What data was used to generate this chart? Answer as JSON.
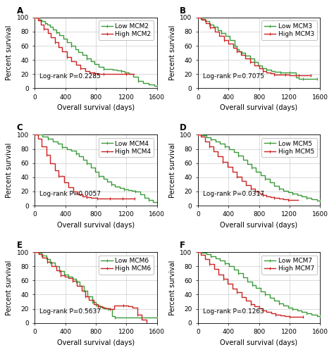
{
  "panels": [
    {
      "label": "A",
      "gene": "MCM2",
      "pvalue": "P=0.2285",
      "low_x": [
        0,
        30,
        60,
        90,
        130,
        160,
        200,
        240,
        280,
        320,
        370,
        420,
        480,
        530,
        570,
        620,
        680,
        730,
        780,
        840,
        900,
        960,
        1020,
        1080,
        1130,
        1180,
        1230,
        1290,
        1350,
        1420,
        1490,
        1570,
        1600
      ],
      "low_y": [
        100,
        100,
        97,
        95,
        92,
        90,
        87,
        83,
        79,
        75,
        70,
        65,
        60,
        55,
        51,
        47,
        42,
        38,
        34,
        30,
        27,
        27,
        26,
        25,
        24,
        22,
        20,
        16,
        10,
        7,
        5,
        3,
        3
      ],
      "high_x": [
        0,
        40,
        80,
        120,
        170,
        210,
        260,
        310,
        360,
        420,
        480,
        540,
        600,
        660,
        720,
        780,
        820,
        860,
        900,
        1000,
        1100,
        1200,
        1280,
        1300
      ],
      "high_y": [
        100,
        96,
        90,
        84,
        78,
        72,
        65,
        58,
        52,
        44,
        38,
        33,
        28,
        24,
        22,
        21,
        20,
        20,
        20,
        20,
        20,
        20,
        20,
        20
      ]
    },
    {
      "label": "B",
      "gene": "MCM3",
      "pvalue": "P=0.7075",
      "low_x": [
        0,
        40,
        90,
        150,
        200,
        260,
        310,
        360,
        420,
        480,
        510,
        540,
        570,
        620,
        680,
        740,
        790,
        840,
        900,
        960,
        1010,
        1080,
        1100,
        1140,
        1200,
        1280,
        1320,
        1380,
        1440,
        1510,
        1560
      ],
      "low_y": [
        100,
        98,
        95,
        90,
        87,
        82,
        78,
        74,
        68,
        60,
        55,
        52,
        50,
        46,
        42,
        37,
        32,
        28,
        26,
        24,
        23,
        22,
        22,
        22,
        22,
        15,
        13,
        13,
        13,
        13,
        13
      ],
      "high_x": [
        0,
        50,
        100,
        160,
        220,
        280,
        340,
        400,
        460,
        510,
        560,
        620,
        680,
        740,
        800,
        850,
        900,
        950,
        1000,
        1050,
        1100,
        1150,
        1200,
        1260,
        1320,
        1380,
        1440,
        1480
      ],
      "high_y": [
        100,
        97,
        92,
        86,
        80,
        74,
        68,
        63,
        57,
        52,
        47,
        42,
        37,
        32,
        28,
        24,
        22,
        21,
        19,
        19,
        19,
        19,
        18,
        18,
        18,
        18,
        18,
        18
      ]
    },
    {
      "label": "C",
      "gene": "MCM4",
      "pvalue": "P=0.0057",
      "low_x": [
        0,
        50,
        100,
        170,
        240,
        300,
        360,
        420,
        480,
        540,
        580,
        630,
        680,
        730,
        790,
        840,
        900,
        950,
        1000,
        1050,
        1110,
        1170,
        1220,
        1270,
        1320,
        1380,
        1440,
        1490,
        1550,
        1600
      ],
      "low_y": [
        100,
        100,
        97,
        94,
        90,
        87,
        83,
        80,
        78,
        74,
        70,
        65,
        60,
        54,
        48,
        42,
        38,
        34,
        30,
        27,
        25,
        23,
        22,
        21,
        20,
        16,
        11,
        8,
        5,
        4
      ],
      "high_x": [
        0,
        40,
        90,
        150,
        200,
        260,
        310,
        380,
        440,
        500,
        560,
        620,
        680,
        730,
        780,
        820,
        870,
        920,
        980,
        1040,
        1100,
        1150,
        1200,
        1260,
        1310
      ],
      "high_y": [
        100,
        94,
        84,
        72,
        60,
        50,
        42,
        33,
        26,
        20,
        16,
        13,
        12,
        11,
        11,
        10,
        10,
        10,
        10,
        10,
        10,
        10,
        10,
        10,
        10
      ]
    },
    {
      "label": "D",
      "gene": "MCM5",
      "pvalue": "P=0.0317",
      "low_x": [
        0,
        50,
        110,
        170,
        230,
        290,
        350,
        410,
        470,
        530,
        590,
        650,
        700,
        760,
        820,
        880,
        940,
        1000,
        1060,
        1120,
        1180,
        1240,
        1300,
        1360,
        1420,
        1490,
        1560,
        1600
      ],
      "low_y": [
        100,
        99,
        96,
        93,
        90,
        87,
        84,
        80,
        76,
        71,
        65,
        59,
        54,
        48,
        43,
        38,
        33,
        28,
        24,
        21,
        19,
        17,
        15,
        13,
        11,
        9,
        7,
        7
      ],
      "high_x": [
        0,
        40,
        90,
        150,
        200,
        260,
        320,
        390,
        450,
        510,
        570,
        630,
        690,
        750,
        800,
        850,
        900,
        950,
        1000,
        1060,
        1120,
        1180,
        1250,
        1310
      ],
      "high_y": [
        100,
        97,
        90,
        84,
        77,
        70,
        62,
        55,
        48,
        41,
        35,
        29,
        24,
        20,
        17,
        15,
        13,
        12,
        11,
        10,
        9,
        8,
        8,
        8
      ]
    },
    {
      "label": "E",
      "gene": "MCM6",
      "pvalue": "P=0.5637",
      "low_x": [
        0,
        40,
        90,
        150,
        200,
        260,
        320,
        380,
        440,
        490,
        540,
        590,
        640,
        690,
        750,
        800,
        850,
        900,
        960,
        1010,
        1050,
        1100,
        1600
      ],
      "low_y": [
        100,
        99,
        95,
        90,
        85,
        80,
        73,
        68,
        65,
        62,
        58,
        52,
        45,
        38,
        30,
        25,
        23,
        21,
        20,
        10,
        8,
        8,
        8
      ],
      "high_x": [
        0,
        50,
        100,
        160,
        220,
        280,
        340,
        390,
        440,
        490,
        550,
        610,
        660,
        710,
        770,
        830,
        880,
        930,
        980,
        1040,
        1100,
        1160,
        1220,
        1280,
        1340,
        1400,
        1460
      ],
      "high_y": [
        100,
        97,
        92,
        86,
        80,
        74,
        67,
        65,
        63,
        59,
        52,
        45,
        38,
        33,
        27,
        24,
        22,
        21,
        20,
        25,
        25,
        25,
        24,
        22,
        12,
        5,
        0
      ]
    },
    {
      "label": "F",
      "gene": "MCM7",
      "pvalue": "P=0.1263",
      "low_x": [
        0,
        50,
        110,
        170,
        230,
        290,
        350,
        410,
        470,
        530,
        590,
        650,
        710,
        760,
        820,
        880,
        940,
        1000,
        1060,
        1120,
        1180,
        1240,
        1300,
        1360,
        1420,
        1490,
        1560,
        1600
      ],
      "low_y": [
        100,
        99,
        97,
        94,
        91,
        88,
        84,
        80,
        75,
        70,
        64,
        58,
        53,
        49,
        44,
        40,
        36,
        32,
        28,
        25,
        22,
        20,
        18,
        16,
        14,
        12,
        10,
        10
      ],
      "high_x": [
        0,
        40,
        90,
        150,
        210,
        270,
        330,
        390,
        450,
        510,
        570,
        630,
        690,
        740,
        800,
        850,
        900,
        960,
        1020,
        1080,
        1140,
        1200,
        1260,
        1320,
        1380
      ],
      "high_y": [
        100,
        96,
        90,
        83,
        76,
        68,
        62,
        55,
        48,
        43,
        37,
        32,
        27,
        24,
        21,
        18,
        16,
        14,
        12,
        11,
        10,
        9,
        9,
        9,
        9
      ]
    }
  ],
  "xlim": [
    0,
    1600
  ],
  "ylim": [
    0,
    100
  ],
  "xticks": [
    0,
    400,
    800,
    1200,
    1600
  ],
  "yticks": [
    0,
    20,
    40,
    60,
    80,
    100
  ],
  "xlabel": "Overall survival (days)",
  "ylabel": "Percent survival",
  "grid_color": "#cccccc",
  "bg_color": "#ffffff",
  "low_color": "#3a9c3a",
  "high_color": "#cc2222",
  "tick_fontsize": 6.5,
  "label_fontsize": 7,
  "pval_fontsize": 6.5,
  "legend_fontsize": 6.5
}
